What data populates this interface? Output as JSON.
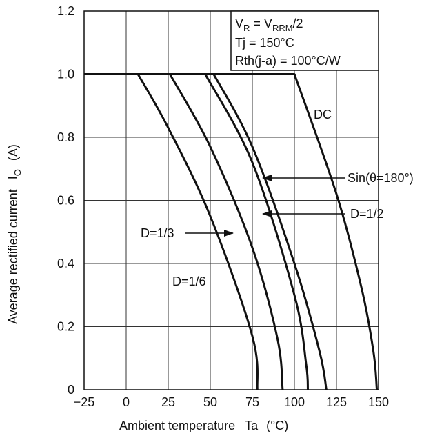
{
  "chart_data": {
    "type": "line",
    "xlabel": "Ambient temperature",
    "xlabel_symbol": "Ta",
    "xlabel_unit": "(°C)",
    "ylabel": "Average rectified current",
    "ylabel_symbol": "I",
    "ylabel_symbol_sub": "O",
    "ylabel_unit": "(A)",
    "xlim": [
      -25,
      150
    ],
    "ylim": [
      0,
      1.2
    ],
    "xticks": [
      "−25",
      "0",
      "25",
      "50",
      "75",
      "100",
      "125",
      "150"
    ],
    "xtick_values": [
      -25,
      0,
      25,
      50,
      75,
      100,
      125,
      150
    ],
    "yticks": [
      "0",
      "0.2",
      "0.4",
      "0.6",
      "0.8",
      "1.0",
      "1.2"
    ],
    "ytick_values": [
      0,
      0.2,
      0.4,
      0.6,
      0.8,
      1.0,
      1.2
    ],
    "grid": true,
    "conditions": {
      "line1_V": "V",
      "line1_R": "R",
      "line1_eq": " = V",
      "line1_RRM": "RRM",
      "line1_tail": "/2",
      "line2": "Tj = 150°C",
      "line3": "Rth(j-a) = 100°C/W"
    },
    "series": [
      {
        "name": "D=1/6",
        "points": [
          [
            -25,
            1.0
          ],
          [
            7,
            1.0
          ],
          [
            25,
            0.83
          ],
          [
            50,
            0.55
          ],
          [
            75,
            0.17
          ],
          [
            78,
            0
          ]
        ]
      },
      {
        "name": "D=1/3",
        "points": [
          [
            -25,
            1.0
          ],
          [
            26,
            1.0
          ],
          [
            50,
            0.77
          ],
          [
            75,
            0.45
          ],
          [
            90,
            0.16
          ],
          [
            93,
            0
          ]
        ]
      },
      {
        "name": "Sin(θ=180°)",
        "points": [
          [
            -25,
            1.0
          ],
          [
            47,
            1.0
          ],
          [
            75,
            0.72
          ],
          [
            100,
            0.3
          ],
          [
            107,
            0.08
          ],
          [
            108,
            0
          ]
        ]
      },
      {
        "name": "D=1/2",
        "points": [
          [
            -25,
            1.0
          ],
          [
            52,
            1.0
          ],
          [
            75,
            0.77
          ],
          [
            100,
            0.4
          ],
          [
            115,
            0.12
          ],
          [
            119,
            0
          ]
        ]
      },
      {
        "name": "DC",
        "points": [
          [
            -25,
            1.0
          ],
          [
            100,
            1.0
          ],
          [
            125,
            0.62
          ],
          [
            140,
            0.32
          ],
          [
            147,
            0.12
          ],
          [
            149,
            0
          ]
        ]
      }
    ],
    "annotations": [
      {
        "text": "DC",
        "arrow": false
      },
      {
        "text": "Sin(θ=180°)",
        "arrow": true,
        "target_series": "Sin(θ=180°)"
      },
      {
        "text": "D=1/2",
        "arrow": true,
        "target_series": "D=1/2"
      },
      {
        "text": "D=1/3",
        "arrow": true,
        "target_series": "D=1/3"
      },
      {
        "text": "D=1/6",
        "arrow": false
      }
    ]
  }
}
